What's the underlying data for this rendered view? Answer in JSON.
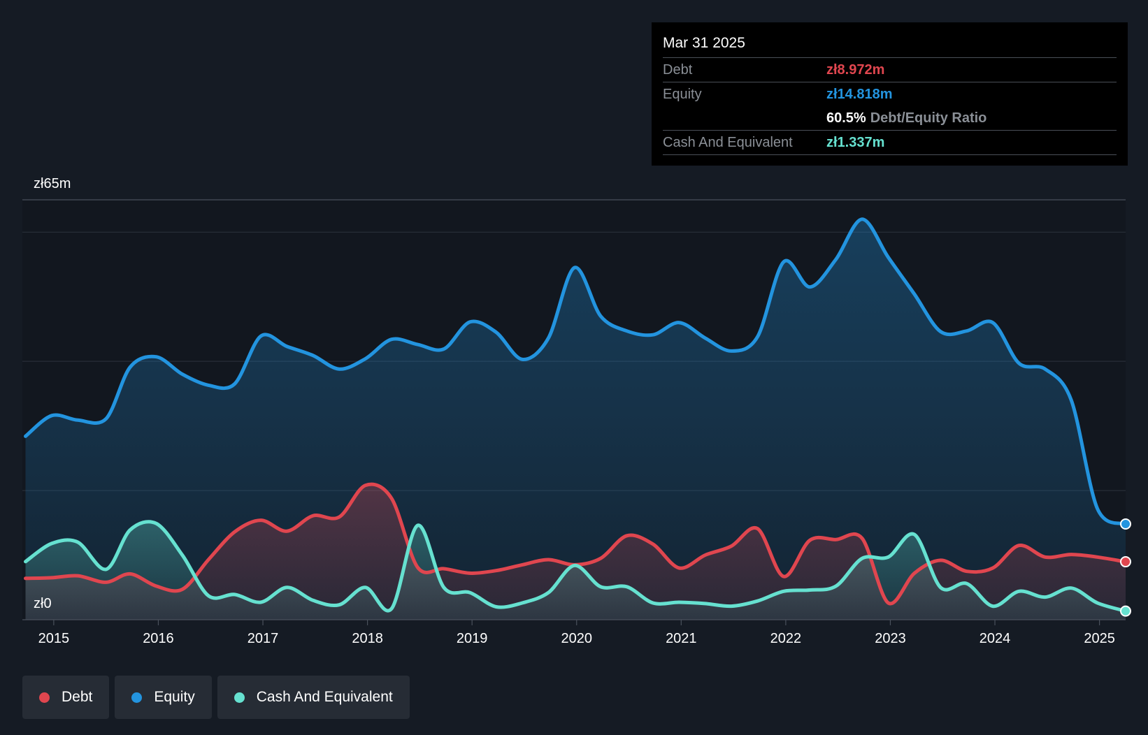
{
  "tooltip": {
    "date": "Mar 31 2025",
    "debt_label": "Debt",
    "debt_value": "zł8.972m",
    "equity_label": "Equity",
    "equity_value": "zł14.818m",
    "ratio_value": "60.5%",
    "ratio_label": "Debt/Equity Ratio",
    "cash_label": "Cash And Equivalent",
    "cash_value": "zł1.337m"
  },
  "legend": {
    "debt": "Debt",
    "equity": "Equity",
    "cash": "Cash And Equivalent"
  },
  "colors": {
    "debt": "#e0464f",
    "equity": "#2394df",
    "cash": "#66e1d0",
    "background": "#151b24",
    "grid": "#2c333d"
  },
  "chart_data": {
    "type": "area",
    "title": "",
    "xlabel": "",
    "ylabel": "",
    "y_axis_labels": {
      "top": "zł65m",
      "bottom": "zł0"
    },
    "ylim": [
      0,
      65
    ],
    "xlim": [
      2014.7,
      2025.25
    ],
    "x_ticks": [
      "2015",
      "2016",
      "2017",
      "2018",
      "2019",
      "2020",
      "2021",
      "2022",
      "2023",
      "2024",
      "2025"
    ],
    "series": [
      {
        "name": "Equity",
        "points": [
          [
            2014.73,
            28.4
          ],
          [
            2014.98,
            31.6
          ],
          [
            2015.23,
            30.9
          ],
          [
            2015.5,
            31.1
          ],
          [
            2015.73,
            39.1
          ],
          [
            2015.98,
            40.7
          ],
          [
            2016.23,
            38.0
          ],
          [
            2016.48,
            36.3
          ],
          [
            2016.73,
            36.5
          ],
          [
            2016.98,
            43.9
          ],
          [
            2017.23,
            42.3
          ],
          [
            2017.48,
            40.9
          ],
          [
            2017.73,
            38.8
          ],
          [
            2017.98,
            40.4
          ],
          [
            2018.23,
            43.4
          ],
          [
            2018.48,
            42.6
          ],
          [
            2018.73,
            41.9
          ],
          [
            2018.98,
            46.1
          ],
          [
            2019.23,
            44.5
          ],
          [
            2019.48,
            40.3
          ],
          [
            2019.73,
            43.6
          ],
          [
            2019.98,
            54.5
          ],
          [
            2020.23,
            47.0
          ],
          [
            2020.48,
            44.7
          ],
          [
            2020.73,
            44.1
          ],
          [
            2020.98,
            46.0
          ],
          [
            2021.23,
            43.6
          ],
          [
            2021.48,
            41.6
          ],
          [
            2021.73,
            43.8
          ],
          [
            2021.98,
            55.4
          ],
          [
            2022.23,
            51.5
          ],
          [
            2022.48,
            55.8
          ],
          [
            2022.73,
            62.0
          ],
          [
            2022.98,
            56.1
          ],
          [
            2023.23,
            50.4
          ],
          [
            2023.48,
            44.6
          ],
          [
            2023.73,
            44.7
          ],
          [
            2023.98,
            46.0
          ],
          [
            2024.23,
            39.7
          ],
          [
            2024.48,
            38.8
          ],
          [
            2024.73,
            34.0
          ],
          [
            2024.98,
            17.2
          ],
          [
            2025.25,
            14.818
          ]
        ]
      },
      {
        "name": "Debt",
        "points": [
          [
            2014.73,
            6.4
          ],
          [
            2014.98,
            6.5
          ],
          [
            2015.23,
            6.8
          ],
          [
            2015.5,
            5.8
          ],
          [
            2015.73,
            7.1
          ],
          [
            2015.98,
            5.2
          ],
          [
            2016.23,
            4.7
          ],
          [
            2016.48,
            9.3
          ],
          [
            2016.73,
            13.6
          ],
          [
            2016.98,
            15.4
          ],
          [
            2017.23,
            13.7
          ],
          [
            2017.48,
            16.1
          ],
          [
            2017.73,
            15.9
          ],
          [
            2017.98,
            20.8
          ],
          [
            2018.23,
            18.8
          ],
          [
            2018.48,
            8.1
          ],
          [
            2018.73,
            7.9
          ],
          [
            2018.98,
            7.2
          ],
          [
            2019.23,
            7.6
          ],
          [
            2019.48,
            8.5
          ],
          [
            2019.73,
            9.3
          ],
          [
            2019.98,
            8.5
          ],
          [
            2020.23,
            9.5
          ],
          [
            2020.48,
            13.0
          ],
          [
            2020.73,
            11.7
          ],
          [
            2020.98,
            8.0
          ],
          [
            2021.23,
            10.0
          ],
          [
            2021.48,
            11.4
          ],
          [
            2021.73,
            14.1
          ],
          [
            2021.98,
            6.7
          ],
          [
            2022.23,
            12.3
          ],
          [
            2022.48,
            12.4
          ],
          [
            2022.73,
            12.6
          ],
          [
            2022.98,
            2.6
          ],
          [
            2023.23,
            7.2
          ],
          [
            2023.48,
            9.2
          ],
          [
            2023.73,
            7.5
          ],
          [
            2023.98,
            8.0
          ],
          [
            2024.23,
            11.5
          ],
          [
            2024.48,
            9.7
          ],
          [
            2024.73,
            10.1
          ],
          [
            2024.98,
            9.7
          ],
          [
            2025.25,
            8.972
          ]
        ]
      },
      {
        "name": "Cash And Equivalent",
        "points": [
          [
            2014.73,
            9.0
          ],
          [
            2014.98,
            11.8
          ],
          [
            2015.23,
            12.0
          ],
          [
            2015.5,
            7.8
          ],
          [
            2015.73,
            13.9
          ],
          [
            2015.98,
            14.9
          ],
          [
            2016.23,
            10.0
          ],
          [
            2016.48,
            3.7
          ],
          [
            2016.73,
            3.9
          ],
          [
            2016.98,
            2.7
          ],
          [
            2017.23,
            5.0
          ],
          [
            2017.48,
            3.0
          ],
          [
            2017.73,
            2.3
          ],
          [
            2017.98,
            5.0
          ],
          [
            2018.23,
            1.7
          ],
          [
            2018.48,
            14.6
          ],
          [
            2018.73,
            5.0
          ],
          [
            2018.98,
            4.2
          ],
          [
            2019.23,
            2.0
          ],
          [
            2019.48,
            2.6
          ],
          [
            2019.73,
            4.2
          ],
          [
            2019.98,
            8.4
          ],
          [
            2020.23,
            5.1
          ],
          [
            2020.48,
            5.1
          ],
          [
            2020.73,
            2.6
          ],
          [
            2020.98,
            2.7
          ],
          [
            2021.23,
            2.5
          ],
          [
            2021.48,
            2.1
          ],
          [
            2021.73,
            2.9
          ],
          [
            2021.98,
            4.4
          ],
          [
            2022.23,
            4.6
          ],
          [
            2022.48,
            5.2
          ],
          [
            2022.73,
            9.5
          ],
          [
            2022.98,
            9.7
          ],
          [
            2023.23,
            13.2
          ],
          [
            2023.48,
            5.0
          ],
          [
            2023.73,
            5.6
          ],
          [
            2023.98,
            2.1
          ],
          [
            2024.23,
            4.4
          ],
          [
            2024.48,
            3.5
          ],
          [
            2024.73,
            4.9
          ],
          [
            2024.98,
            2.6
          ],
          [
            2025.25,
            1.337
          ]
        ]
      }
    ]
  }
}
